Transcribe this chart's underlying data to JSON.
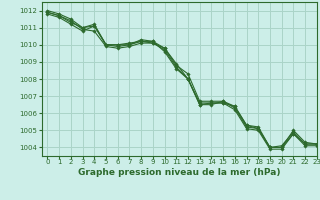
{
  "title": "Graphe pression niveau de la mer (hPa)",
  "bg_color": "#cceee8",
  "grid_color": "#aad4c8",
  "line_color": "#2d6a2d",
  "marker_color": "#2d6a2d",
  "xlim": [
    -0.5,
    23
  ],
  "ylim": [
    1003.5,
    1012.5
  ],
  "yticks": [
    1004,
    1005,
    1006,
    1007,
    1008,
    1009,
    1010,
    1011,
    1012
  ],
  "xticks": [
    0,
    1,
    2,
    3,
    4,
    5,
    6,
    7,
    8,
    9,
    10,
    11,
    12,
    13,
    14,
    15,
    16,
    17,
    18,
    19,
    20,
    21,
    22,
    23
  ],
  "lines": [
    [
      1012.0,
      1011.8,
      1011.5,
      1011.0,
      1011.1,
      1010.0,
      1010.0,
      1010.0,
      1010.2,
      1010.2,
      1009.8,
      1008.8,
      1008.3,
      1006.7,
      1006.7,
      1006.7,
      1006.4,
      1005.3,
      1005.2,
      1004.0,
      1004.0,
      1005.0,
      1004.3,
      1004.2
    ],
    [
      1011.9,
      1011.7,
      1011.4,
      1010.9,
      1010.8,
      1009.9,
      1009.8,
      1009.9,
      1010.1,
      1010.1,
      1009.7,
      1008.7,
      1008.0,
      1006.5,
      1006.6,
      1006.6,
      1006.2,
      1005.1,
      1005.0,
      1003.9,
      1003.9,
      1004.8,
      1004.1,
      1004.1
    ],
    [
      1011.8,
      1011.6,
      1011.2,
      1010.8,
      1011.1,
      1010.0,
      1009.9,
      1010.0,
      1010.3,
      1010.2,
      1009.6,
      1008.6,
      1008.0,
      1006.5,
      1006.5,
      1006.7,
      1006.3,
      1005.2,
      1005.1,
      1004.0,
      1004.1,
      1004.9,
      1004.2,
      1004.2
    ],
    [
      1011.9,
      1011.7,
      1011.3,
      1011.0,
      1011.2,
      1010.0,
      1010.0,
      1010.1,
      1010.2,
      1010.1,
      1009.8,
      1008.9,
      1008.0,
      1006.6,
      1006.6,
      1006.6,
      1006.4,
      1005.3,
      1005.1,
      1004.0,
      1004.0,
      1004.8,
      1004.2,
      1004.2
    ]
  ],
  "ylabel_fontsize": 5.5,
  "xlabel_fontsize": 6.5,
  "tick_fontsize": 5
}
